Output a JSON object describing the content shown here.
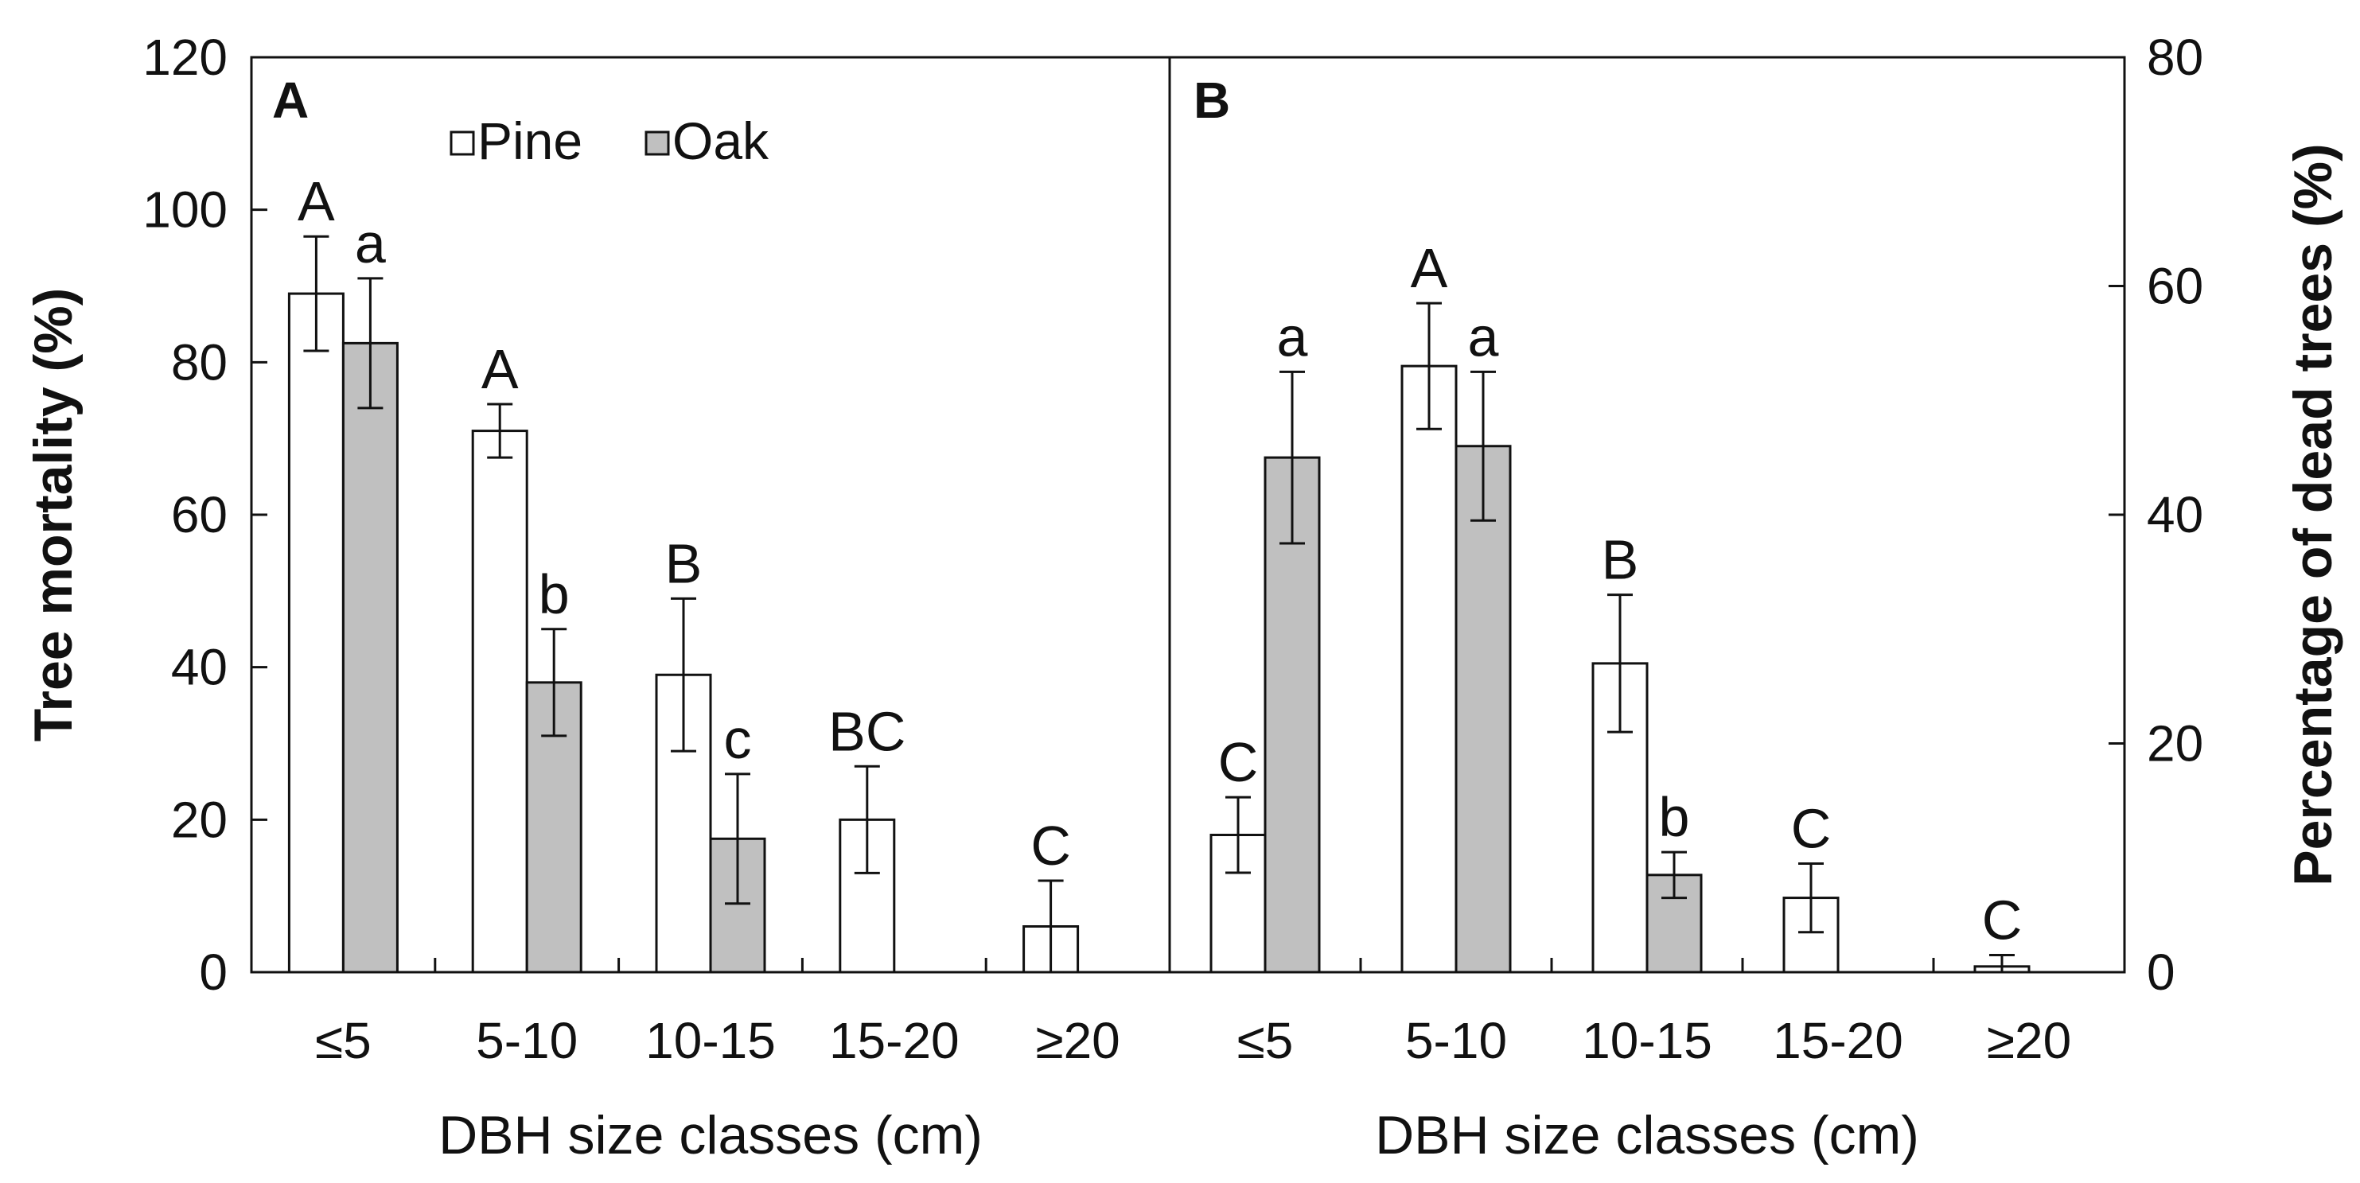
{
  "chart_data": {
    "type": "bar",
    "series_names": [
      "Pine",
      "Oak"
    ],
    "colors": {
      "Pine": "#ffffff",
      "Oak": "#c0c0c0",
      "line": "#111111"
    },
    "left_axis": {
      "title": "Tree mortality (%)",
      "ylim": [
        0,
        120
      ],
      "ticks": [
        "0",
        "20",
        "40",
        "60",
        "80",
        "100",
        "120"
      ],
      "tick_values": [
        0,
        20,
        40,
        60,
        80,
        100,
        120
      ]
    },
    "right_axis": {
      "title": "Percentage of dead trees (%)",
      "ylim": [
        0,
        80
      ],
      "ticks": [
        "0",
        "20",
        "40",
        "60",
        "80"
      ],
      "tick_values": [
        0,
        20,
        40,
        60,
        80
      ]
    },
    "panels": [
      {
        "label": "A",
        "xlabel": "DBH size classes (cm)",
        "axis": "left",
        "categories": [
          "≤5",
          "5-10",
          "10-15",
          "15-20",
          "≥20"
        ],
        "series": [
          {
            "name": "Pine",
            "values": [
              89,
              71,
              39,
              20,
              6
            ],
            "errors": [
              7.5,
              3.5,
              10,
              7,
              6
            ],
            "letters": [
              "A",
              "A",
              "B",
              "BC",
              "C"
            ]
          },
          {
            "name": "Oak",
            "values": [
              82.5,
              38,
              17.5,
              null,
              null
            ],
            "errors": [
              8.5,
              7,
              8.5,
              null,
              null
            ],
            "letters": [
              "a",
              "b",
              "c",
              "",
              ""
            ]
          }
        ]
      },
      {
        "label": "B",
        "xlabel": "DBH size classes (cm)",
        "axis": "right",
        "categories": [
          "≤5",
          "5-10",
          "10-15",
          "15-20",
          "≥20"
        ],
        "series": [
          {
            "name": "Pine",
            "values": [
              12,
              53,
              27,
              6.5,
              0.5
            ],
            "errors": [
              3.3,
              5.5,
              6,
              3,
              1
            ],
            "letters": [
              "C",
              "A",
              "B",
              "C",
              "C"
            ]
          },
          {
            "name": "Oak",
            "values": [
              45,
              46,
              8.5,
              null,
              null
            ],
            "errors": [
              7.5,
              6.5,
              2,
              null,
              null
            ],
            "letters": [
              "a",
              "a",
              "b",
              "",
              ""
            ]
          }
        ]
      }
    ]
  }
}
